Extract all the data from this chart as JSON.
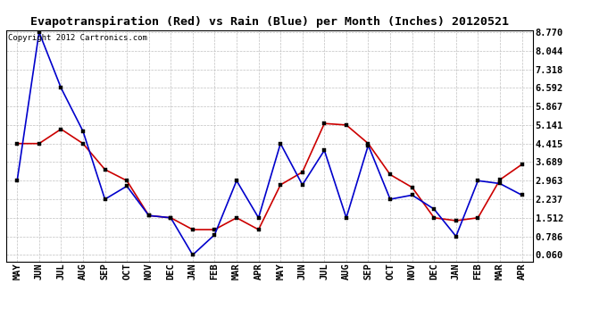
{
  "title": "Evapotranspiration (Red) vs Rain (Blue) per Month (Inches) 20120521",
  "copyright": "Copyright 2012 Cartronics.com",
  "x_labels": [
    "MAY",
    "JUN",
    "JUL",
    "AUG",
    "SEP",
    "OCT",
    "NOV",
    "DEC",
    "JAN",
    "FEB",
    "MAR",
    "APR",
    "MAY",
    "JUN",
    "JUL",
    "AUG",
    "SEP",
    "OCT",
    "NOV",
    "DEC",
    "JAN",
    "FEB",
    "MAR",
    "APR"
  ],
  "red_data": [
    4.415,
    4.415,
    4.98,
    4.415,
    3.4,
    2.963,
    1.6,
    1.512,
    1.05,
    1.05,
    1.512,
    1.05,
    2.8,
    3.3,
    5.2,
    5.141,
    4.415,
    3.2,
    2.7,
    1.512,
    1.4,
    1.512,
    3.0,
    3.6
  ],
  "blue_data": [
    2.963,
    8.77,
    6.592,
    4.9,
    2.237,
    2.75,
    1.6,
    1.512,
    0.06,
    0.85,
    2.963,
    1.512,
    4.415,
    2.8,
    4.15,
    1.512,
    4.35,
    2.237,
    2.4,
    1.85,
    0.786,
    2.963,
    2.85,
    2.4
  ],
  "yticks": [
    0.06,
    0.786,
    1.512,
    2.237,
    2.963,
    3.689,
    4.415,
    5.141,
    5.867,
    6.592,
    7.318,
    8.044,
    8.77
  ],
  "ymin": 0.06,
  "ymax": 8.77,
  "red_color": "#cc0000",
  "blue_color": "#0000cc",
  "bg_color": "#ffffff",
  "plot_bg_color": "#ffffff",
  "grid_color": "#c0c0c0",
  "title_fontsize": 9.5,
  "tick_fontsize": 7.5,
  "copyright_fontsize": 6.5
}
